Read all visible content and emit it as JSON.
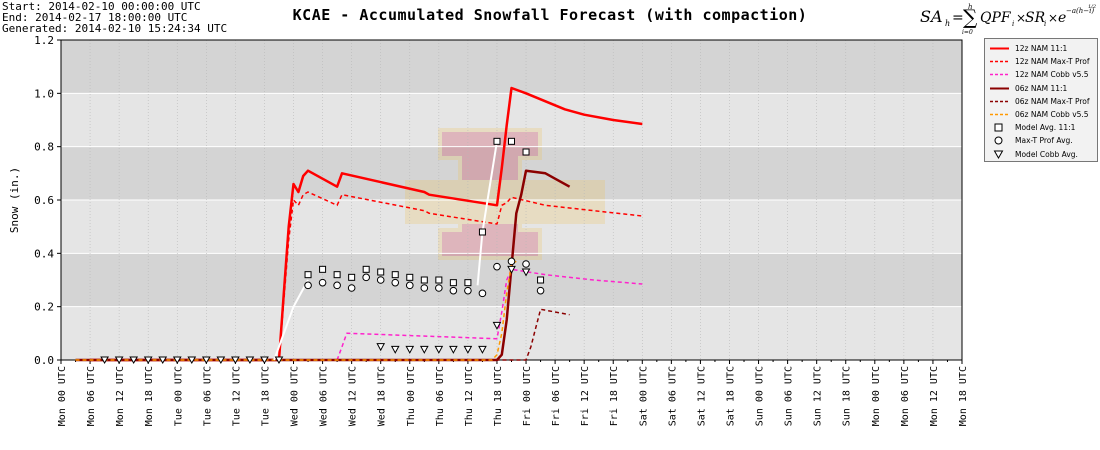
{
  "header": {
    "start": "Start: 2014-02-10 00:00:00 UTC",
    "end": "End: 2014-02-17 18:00:00 UTC",
    "generated": "Generated: 2014-02-10 15:24:34 UTC",
    "title": "KCAE - Accumulated Snowfall Forecast (with compaction)"
  },
  "formula": {
    "lhs": "SA",
    "lhs_sub": "h",
    "sum_top": "h",
    "sum_bottom": "i=0",
    "body": "QPF",
    "body_sub": "i",
    "times": "×",
    "sr": "SR",
    "sr_sub": "i",
    "exp_base": "e",
    "exp": "−a(h−i)",
    "exp_frac": "1/2"
  },
  "legend": [
    {
      "label": "12z NAM 11:1",
      "color": "#ff0000",
      "style": "solid"
    },
    {
      "label": "12z NAM Max-T Prof",
      "color": "#ff0000",
      "style": "dash"
    },
    {
      "label": "12z NAM Cobb v5.5",
      "color": "#ff22cc",
      "style": "dash"
    },
    {
      "label": "06z NAM 11:1",
      "color": "#8b0000",
      "style": "solid"
    },
    {
      "label": "06z NAM Max-T Prof",
      "color": "#8b0000",
      "style": "dash"
    },
    {
      "label": "06z NAM Cobb v5.5",
      "color": "#ff9900",
      "style": "dash"
    },
    {
      "label": "Model Avg. 11:1",
      "marker": "square"
    },
    {
      "label": "Max-T Prof Avg.",
      "marker": "circle"
    },
    {
      "label": "Model Cobb Avg.",
      "marker": "triangle"
    }
  ],
  "chart_data": {
    "type": "line",
    "title": "KCAE - Accumulated Snowfall Forecast (with compaction)",
    "ylabel": "Snow (in.)",
    "xlabel": "",
    "ylim": [
      0,
      1.2
    ],
    "yticks": [
      "0.0",
      "0.2",
      "0.4",
      "0.6",
      "0.8",
      "1.0",
      "1.2"
    ],
    "xlim_hours": [
      0,
      186
    ],
    "x_unit": "forecast hour from Start",
    "xtick_labels": [
      "Mon 00 UTC",
      "Mon 06 UTC",
      "Mon 12 UTC",
      "Mon 18 UTC",
      "Tue 00 UTC",
      "Tue 06 UTC",
      "Tue 12 UTC",
      "Tue 18 UTC",
      "Wed 00 UTC",
      "Wed 06 UTC",
      "Wed 12 UTC",
      "Wed 18 UTC",
      "Thu 00 UTC",
      "Thu 06 UTC",
      "Thu 12 UTC",
      "Thu 18 UTC",
      "Fri 00 UTC",
      "Fri 06 UTC",
      "Fri 12 UTC",
      "Fri 18 UTC",
      "Sat 00 UTC",
      "Sat 06 UTC",
      "Sat 12 UTC",
      "Sat 18 UTC",
      "Sun 00 UTC",
      "Sun 06 UTC",
      "Sun 12 UTC",
      "Sun 18 UTC",
      "Mon 00 UTC",
      "Mon 06 UTC",
      "Mon 12 UTC",
      "Mon 18 UTC"
    ],
    "background_bands": [
      "#d4d4d4",
      "#e5e5e5"
    ],
    "grid": true,
    "legend_position": "right",
    "series": [
      {
        "name": "12z NAM 11:1",
        "color": "#ff0000",
        "style": "solid",
        "width": 2.5,
        "x": [
          6,
          45,
          46,
          47,
          48,
          49,
          50,
          51,
          57,
          58,
          75,
          76,
          90,
          91,
          92,
          93,
          96,
          100,
          104,
          108,
          114,
          120
        ],
        "y": [
          0,
          0,
          0.25,
          0.5,
          0.66,
          0.63,
          0.69,
          0.71,
          0.65,
          0.7,
          0.63,
          0.62,
          0.58,
          0.72,
          0.88,
          1.02,
          1.0,
          0.97,
          0.94,
          0.92,
          0.9,
          0.885
        ]
      },
      {
        "name": "12z NAM Max-T Prof",
        "color": "#ff0000",
        "style": "dash",
        "width": 1.5,
        "x": [
          45,
          46,
          47,
          48,
          49,
          50,
          51,
          57,
          58,
          75,
          76,
          90,
          91,
          92,
          93,
          100,
          110,
          120
        ],
        "y": [
          0,
          0.22,
          0.45,
          0.6,
          0.58,
          0.62,
          0.63,
          0.58,
          0.62,
          0.56,
          0.55,
          0.51,
          0.58,
          0.59,
          0.61,
          0.58,
          0.56,
          0.54
        ]
      },
      {
        "name": "12z NAM Cobb v5.5",
        "color": "#ff22cc",
        "style": "dash",
        "width": 1.5,
        "x": [
          57,
          58,
          59,
          90,
          91,
          92,
          93,
          100,
          110,
          120
        ],
        "y": [
          0,
          0.05,
          0.1,
          0.08,
          0.18,
          0.3,
          0.34,
          0.32,
          0.3,
          0.285
        ]
      },
      {
        "name": "06z NAM 11:1",
        "color": "#8b0000",
        "style": "solid",
        "width": 2.5,
        "x": [
          3,
          90,
          91,
          92,
          93,
          94,
          95,
          96,
          100,
          102,
          105
        ],
        "y": [
          0,
          0,
          0.02,
          0.15,
          0.35,
          0.55,
          0.62,
          0.71,
          0.7,
          0.68,
          0.65
        ]
      },
      {
        "name": "06z NAM Max-T Prof",
        "color": "#8b0000",
        "style": "dash",
        "width": 1.5,
        "x": [
          3,
          96,
          97,
          98,
          99,
          105
        ],
        "y": [
          0,
          0,
          0.05,
          0.12,
          0.19,
          0.17
        ]
      },
      {
        "name": "06z NAM Cobb v5.5",
        "color": "#ff9900",
        "style": "dash",
        "width": 1.5,
        "x": [
          3,
          89,
          90,
          91,
          92,
          93,
          94
        ],
        "y": [
          0,
          0,
          0.02,
          0.1,
          0.25,
          0.36,
          0.37
        ]
      }
    ],
    "averages": [
      {
        "name": "Model Avg. 11:1",
        "marker": "square",
        "x": [
          51,
          54,
          57,
          60,
          63,
          66,
          69,
          72,
          75,
          78,
          81,
          84,
          87,
          90,
          93,
          96,
          99
        ],
        "y": [
          0.32,
          0.34,
          0.32,
          0.31,
          0.34,
          0.33,
          0.32,
          0.31,
          0.3,
          0.3,
          0.29,
          0.29,
          0.48,
          0.82,
          0.82,
          0.78,
          0.3
        ]
      },
      {
        "name": "Max-T Prof Avg.",
        "marker": "circle",
        "x": [
          51,
          54,
          57,
          60,
          63,
          66,
          69,
          72,
          75,
          78,
          81,
          84,
          87,
          90,
          93,
          96,
          99
        ],
        "y": [
          0.28,
          0.29,
          0.28,
          0.27,
          0.31,
          0.3,
          0.29,
          0.28,
          0.27,
          0.27,
          0.26,
          0.26,
          0.25,
          0.35,
          0.37,
          0.36,
          0.26
        ]
      },
      {
        "name": "Model Cobb Avg.",
        "marker": "triangle",
        "x": [
          66,
          69,
          72,
          75,
          78,
          81,
          84,
          87,
          90,
          93,
          96
        ],
        "y": [
          0.05,
          0.04,
          0.04,
          0.04,
          0.04,
          0.04,
          0.04,
          0.04,
          0.13,
          0.34,
          0.33
        ]
      }
    ]
  }
}
